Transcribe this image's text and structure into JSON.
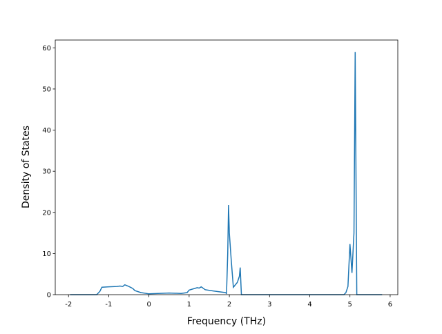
{
  "chart_data": {
    "type": "line",
    "xlabel": "Frequency (THz)",
    "ylabel": "Density of States",
    "x": [
      -1.96,
      -1.3,
      -1.22,
      -1.17,
      -1.0,
      -0.8,
      -0.72,
      -0.65,
      -0.6,
      -0.5,
      -0.4,
      -0.35,
      -0.2,
      0,
      0.5,
      0.8,
      0.95,
      1.0,
      1.1,
      1.2,
      1.25,
      1.3,
      1.4,
      1.6,
      1.9,
      1.93,
      1.96,
      1.98,
      2.0,
      2.05,
      2.1,
      2.2,
      2.25,
      2.27,
      2.3,
      4.85,
      4.9,
      4.95,
      5.0,
      5.05,
      5.1,
      5.13,
      5.17,
      5.8
    ],
    "series": [
      {
        "color": "#1f77b4",
        "values": [
          0,
          0,
          0.8,
          1.8,
          1.9,
          2.0,
          2.1,
          2.0,
          2.4,
          2.0,
          1.5,
          1.0,
          0.5,
          0.2,
          0.4,
          0.3,
          0.5,
          1.1,
          1.4,
          1.7,
          1.6,
          1.9,
          1.2,
          0.9,
          0.5,
          0.3,
          10,
          21.8,
          15,
          8,
          1.8,
          3,
          4.5,
          6.6,
          0,
          0,
          0.5,
          2,
          12.3,
          5.3,
          15,
          59,
          0,
          0
        ]
      }
    ],
    "xlim": [
      -2.33,
      6.19
    ],
    "ylim": [
      0,
      61.9
    ],
    "xticks": [
      -2,
      -1,
      0,
      1,
      2,
      3,
      4,
      5,
      6
    ],
    "yticks": [
      0,
      10,
      20,
      30,
      40,
      50,
      60
    ]
  }
}
